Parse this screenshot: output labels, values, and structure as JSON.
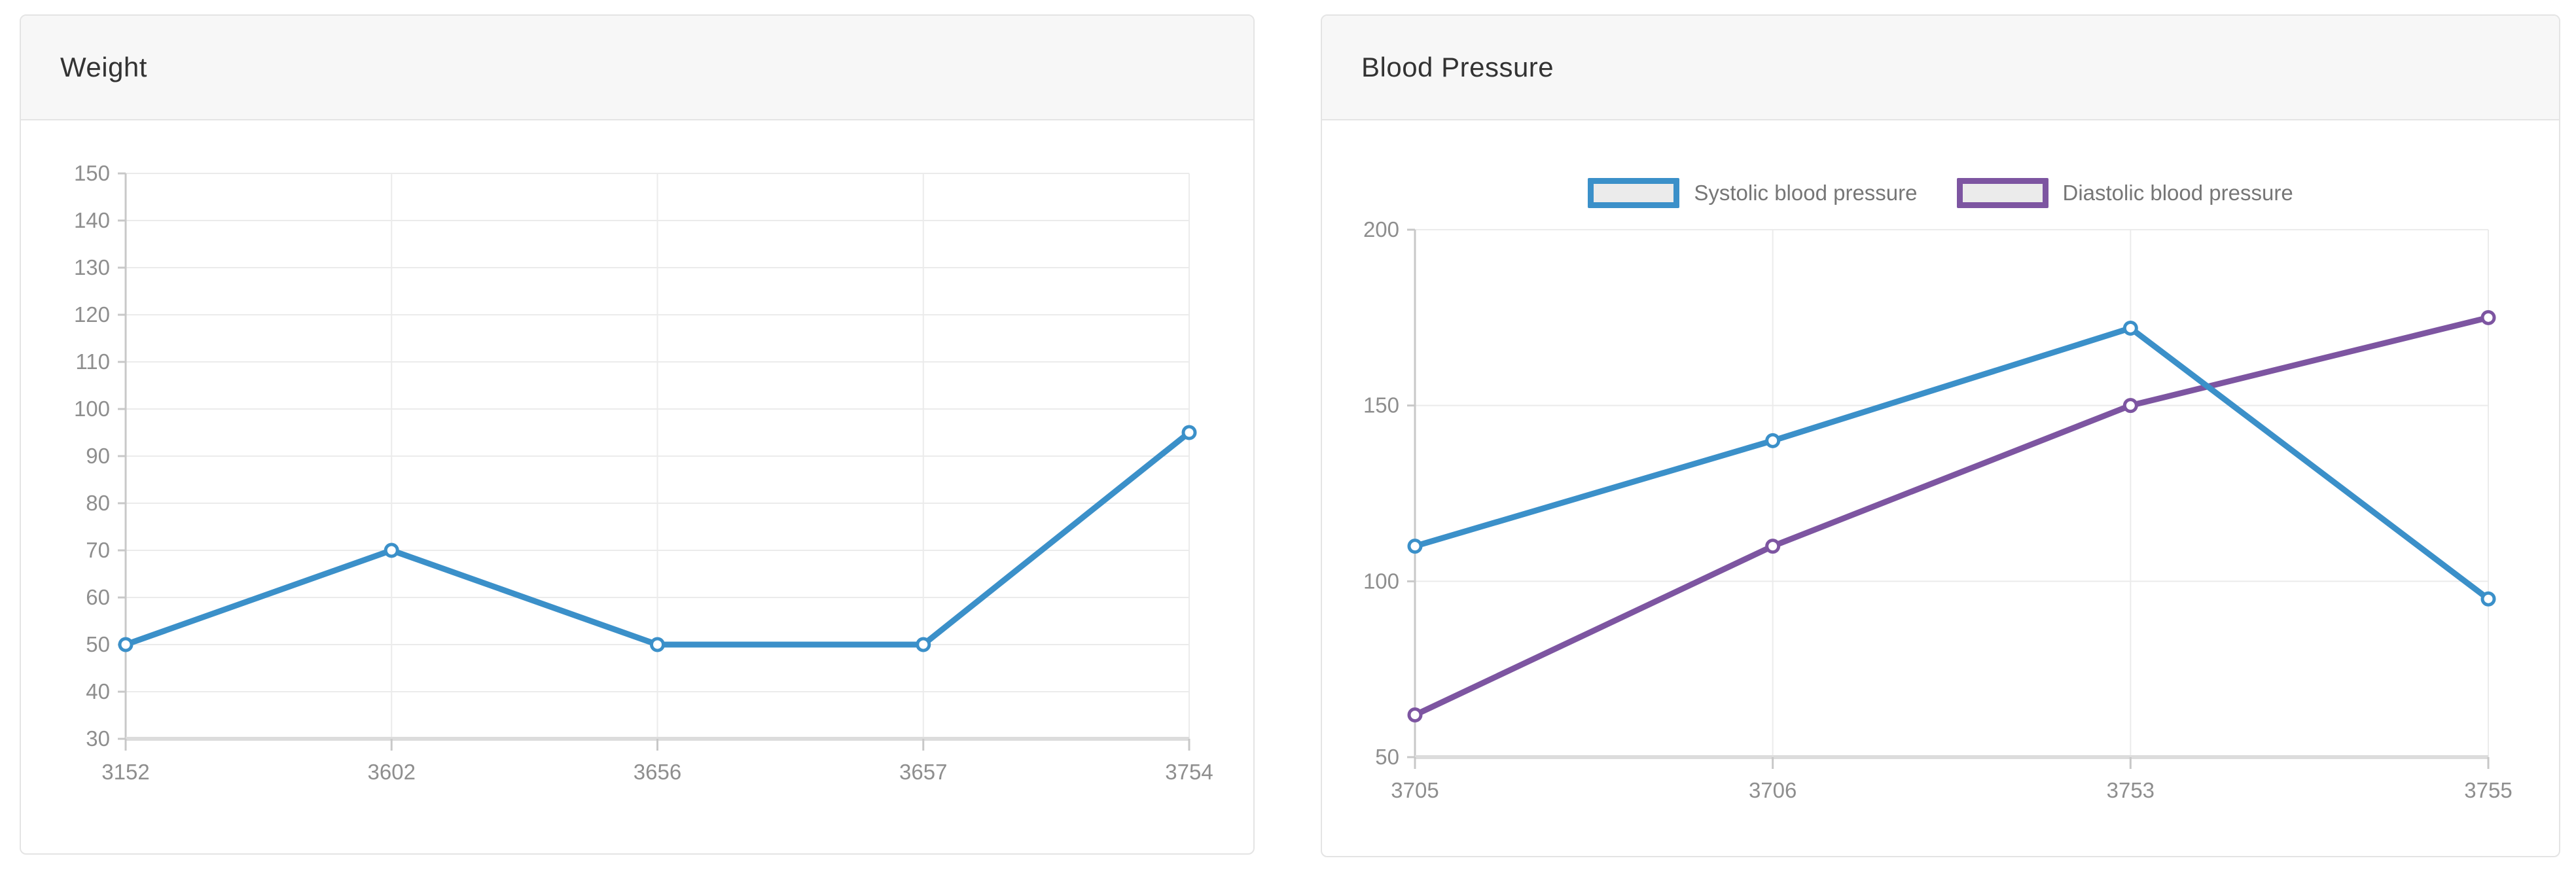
{
  "panels": [
    {
      "title": "Weight"
    },
    {
      "title": "Blood Pressure"
    }
  ],
  "colors": {
    "systolic_blue": "#3b90c9",
    "diastolic_purple": "#7d55a1",
    "grid": "#ebebeb",
    "axis_text": "#8e8e8e",
    "panel_header_bg": "#f7f7f7",
    "title_text": "#333333"
  },
  "chart_data": [
    {
      "type": "line",
      "title": "Weight",
      "categories": [
        "3152",
        "3602",
        "3656",
        "3657",
        "3754"
      ],
      "series": [
        {
          "name": "Weight",
          "color": "#3b90c9",
          "values": [
            50,
            70,
            50,
            50,
            95
          ]
        }
      ],
      "xlabel": "",
      "ylabel": "",
      "ylim": [
        30,
        150
      ],
      "ytick_step": 10,
      "yticks": [
        30,
        40,
        50,
        60,
        70,
        80,
        90,
        100,
        110,
        120,
        130,
        140,
        150
      ],
      "grid": true,
      "legend": false
    },
    {
      "type": "line",
      "title": "Blood Pressure",
      "categories": [
        "3705",
        "3706",
        "3753",
        "3755"
      ],
      "series": [
        {
          "name": "Systolic blood pressure",
          "color": "#3b90c9",
          "values": [
            110,
            140,
            172,
            95
          ]
        },
        {
          "name": "Diastolic blood pressure",
          "color": "#7d55a1",
          "values": [
            62,
            110,
            150,
            175
          ]
        }
      ],
      "xlabel": "",
      "ylabel": "",
      "ylim": [
        50,
        200
      ],
      "ytick_step": 50,
      "yticks": [
        50,
        100,
        150,
        200
      ],
      "grid": true,
      "legend": true,
      "legend_position": "top"
    }
  ]
}
